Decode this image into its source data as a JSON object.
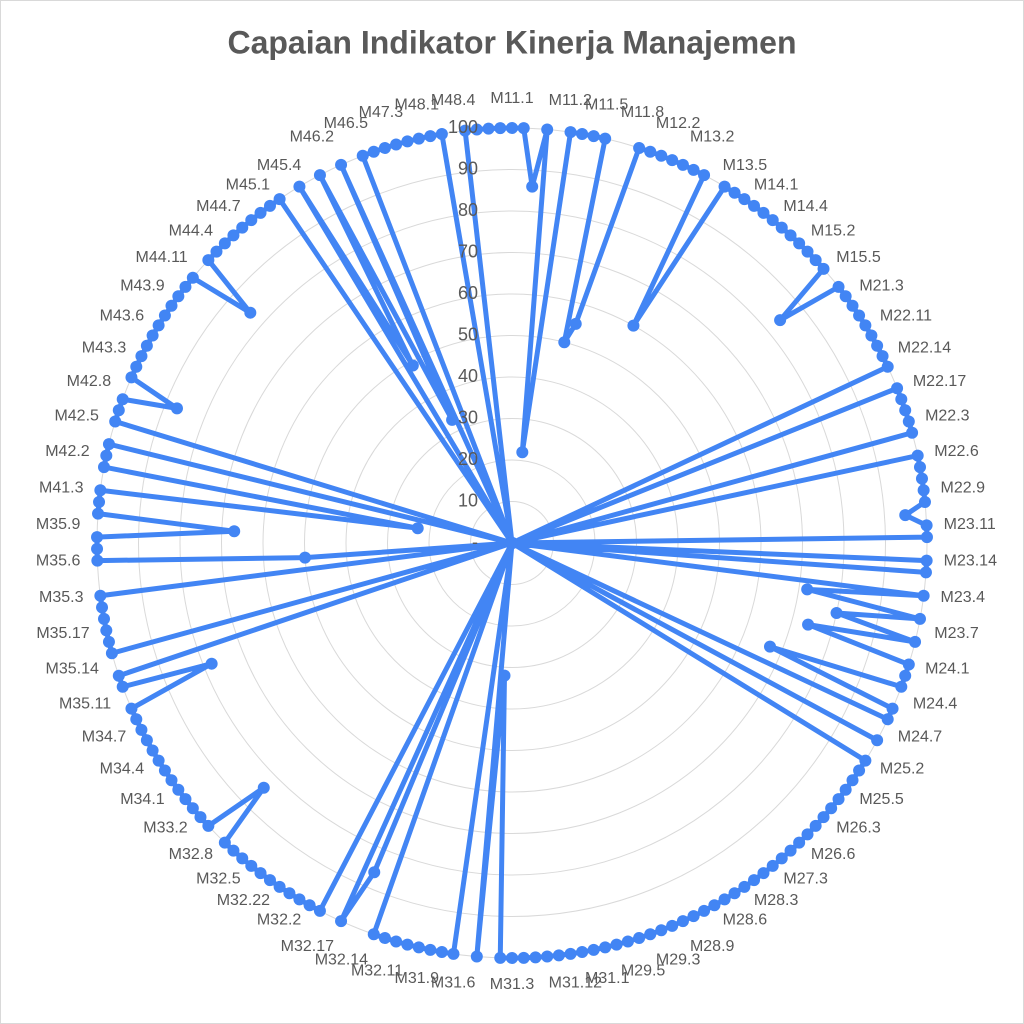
{
  "chart_data": {
    "type": "radar",
    "title": "Capaian Indikator Kinerja Manajemen",
    "color": "#4285f4",
    "grid": true,
    "ylim": [
      0,
      100
    ],
    "yticks": [
      {
        "value": 0,
        "label": "-"
      },
      10,
      20,
      30,
      40,
      50,
      60,
      70,
      80,
      90,
      100
    ],
    "categories": [
      "M11.1",
      null,
      null,
      "M11.2",
      null,
      null,
      "M11.5",
      null,
      null,
      "M11.8",
      null,
      null,
      "M12.2",
      null,
      null,
      "M13.2",
      null,
      null,
      "M13.5",
      null,
      null,
      "M14.1",
      null,
      null,
      "M14.4",
      null,
      null,
      "M15.2",
      null,
      null,
      "M15.5",
      null,
      null,
      "M21.3",
      null,
      null,
      "M22.11",
      null,
      null,
      "M22.14",
      null,
      null,
      "M22.17",
      null,
      null,
      "M22.3",
      null,
      null,
      "M22.6",
      null,
      null,
      "M22.9",
      null,
      null,
      "M23.11",
      null,
      null,
      "M23.14",
      null,
      null,
      "M23.4",
      null,
      null,
      "M23.7",
      null,
      null,
      "M24.1",
      null,
      null,
      "M24.4",
      null,
      null,
      "M24.7",
      null,
      null,
      "M25.2",
      null,
      null,
      "M25.5",
      null,
      null,
      "M26.3",
      null,
      null,
      "M26.6",
      null,
      null,
      "M27.3",
      null,
      null,
      "M28.3",
      null,
      null,
      "M28.6",
      null,
      null,
      "M28.9",
      null,
      null,
      "M29.3",
      null,
      null,
      "M29.5",
      null,
      null,
      "M31.1",
      null,
      null,
      "M31.12",
      null,
      null,
      "M31.3",
      null,
      null,
      "M31.6",
      null,
      null,
      "M31.9",
      null,
      null,
      "M32.11",
      null,
      null,
      "M32.14",
      null,
      null,
      "M32.17",
      null,
      null,
      "M32.2",
      null,
      null,
      "M32.22",
      null,
      null,
      "M32.5",
      null,
      null,
      "M32.8",
      null,
      null,
      "M33.2",
      null,
      null,
      "M34.1",
      null,
      null,
      "M34.4",
      null,
      null,
      "M34.7",
      null,
      null,
      "M35.11",
      null,
      null,
      "M35.14",
      null,
      null,
      "M35.17",
      null,
      null,
      "M35.3",
      null,
      null,
      "M35.6",
      null,
      null,
      "M35.9",
      null,
      null,
      "M41.3",
      null,
      null,
      "M42.2",
      null,
      null,
      "M42.5",
      null,
      null,
      "M42.8",
      null,
      null,
      "M43.3",
      null,
      null,
      "M43.6",
      null,
      null,
      "M43.9",
      null,
      null,
      "M44.11",
      null,
      null,
      "M44.4",
      null,
      null,
      "M44.7",
      null,
      null,
      "M45.1",
      null,
      null,
      "M45.4",
      null,
      null,
      "M46.2",
      null,
      null,
      "M46.5",
      null,
      null,
      "M47.3",
      null,
      null,
      "M48.1",
      null,
      null,
      "M48.4",
      null,
      null
    ],
    "values": [
      100,
      100,
      86,
      100,
      22,
      100,
      100,
      100,
      100,
      50,
      55,
      100,
      100,
      100,
      100,
      100,
      100,
      100,
      60,
      100,
      100,
      100,
      100,
      100,
      100,
      100,
      100,
      100,
      100,
      100,
      100,
      84,
      100,
      100,
      100,
      100,
      100,
      100,
      100,
      100,
      100,
      0,
      100,
      100,
      100,
      100,
      100,
      0,
      100,
      100,
      100,
      100,
      100,
      95,
      100,
      100,
      0,
      100,
      100,
      0,
      100,
      72,
      100,
      80,
      100,
      74,
      100,
      100,
      100,
      67,
      100,
      100,
      0,
      100,
      0,
      100,
      100,
      100,
      100,
      100,
      100,
      100,
      100,
      100,
      100,
      100,
      100,
      100,
      100,
      100,
      100,
      100,
      100,
      100,
      100,
      100,
      100,
      100,
      100,
      100,
      100,
      100,
      100,
      100,
      100,
      100,
      100,
      100,
      100,
      100,
      100,
      100,
      100,
      32,
      100,
      0,
      100,
      100,
      100,
      100,
      100,
      100,
      100,
      100,
      0,
      86,
      100,
      0,
      100,
      100,
      100,
      100,
      100,
      100,
      100,
      100,
      100,
      100,
      100,
      84,
      100,
      100,
      100,
      100,
      100,
      100,
      100,
      100,
      100,
      100,
      100,
      100,
      100,
      78,
      100,
      100,
      0,
      100,
      100,
      100,
      100,
      100,
      100,
      0,
      50,
      100,
      100,
      100,
      67,
      100,
      100,
      100,
      23,
      100,
      100,
      100,
      0,
      100,
      100,
      100,
      87,
      100,
      100,
      100,
      100,
      100,
      100,
      100,
      100,
      100,
      100,
      100,
      84,
      100,
      100,
      100,
      100,
      100,
      100,
      100,
      100,
      100,
      0,
      100,
      49,
      100,
      33,
      100,
      0,
      100,
      100,
      100,
      100,
      100,
      100,
      100,
      100,
      0,
      100,
      100,
      100,
      100
    ]
  }
}
